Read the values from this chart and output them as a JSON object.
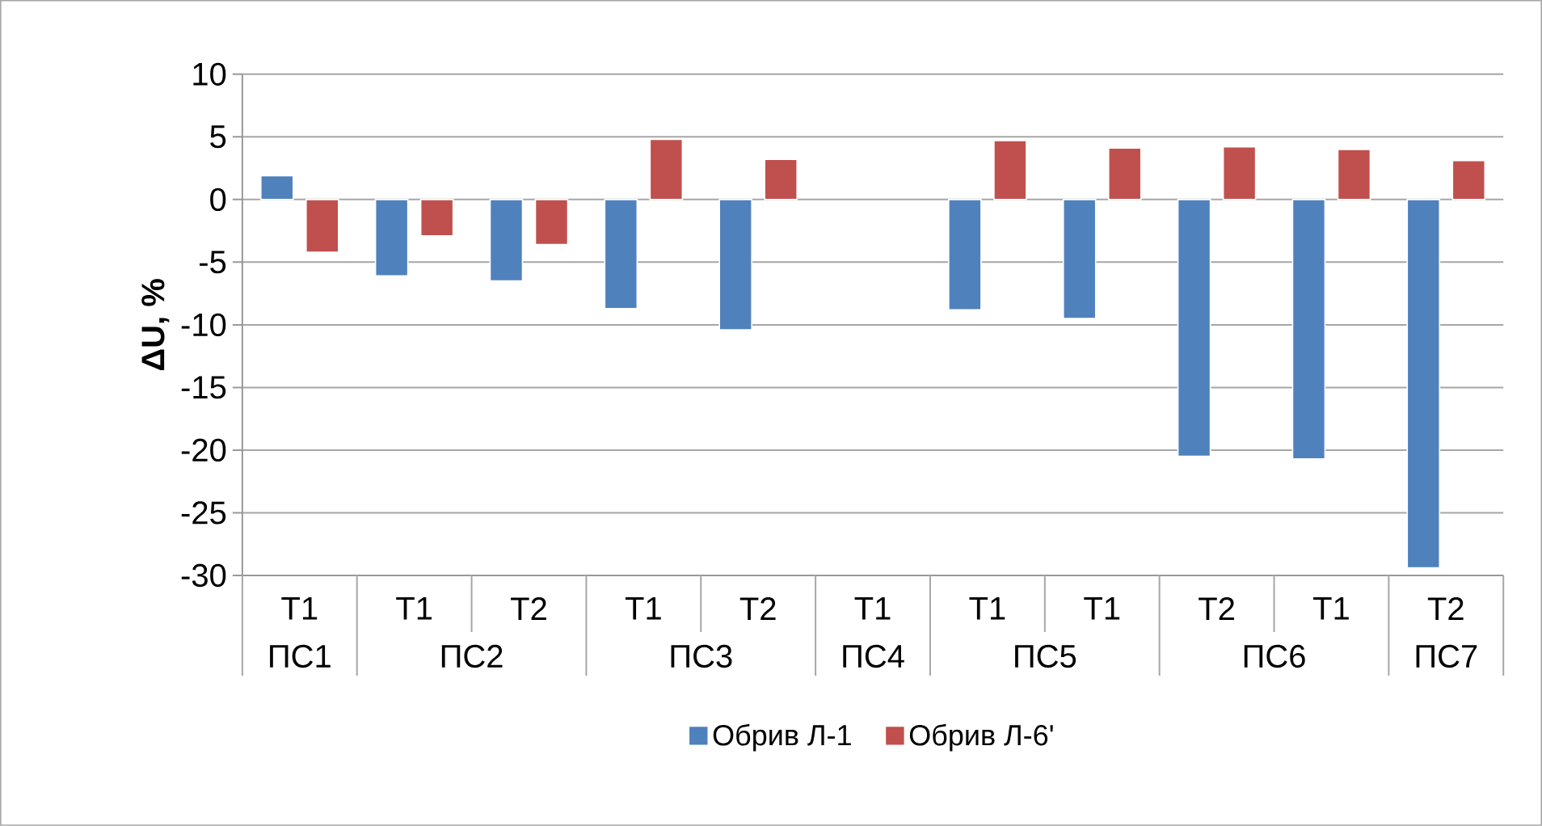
{
  "chart_data": {
    "type": "bar",
    "ylabel": "ΔU, %",
    "categories": [
      "T1",
      "T1",
      "T2",
      "T1",
      "T2",
      "T1",
      "T1",
      "T1",
      "T2",
      "T1",
      "T2"
    ],
    "annotations": [
      "ПС1",
      "ПС2",
      "ПС3",
      "ПС4",
      "ПС5",
      "ПС6",
      "ПС7"
    ],
    "series": [
      {
        "name": "Обрив Л-1",
        "color": "#4f81bd",
        "values": [
          1.9,
          -6.1,
          -6.5,
          -8.7,
          -10.4,
          null,
          -8.8,
          -9.5,
          -20.5,
          -20.7,
          -29.4
        ]
      },
      {
        "name": "Обрив Л-6'",
        "color": "#c0504d",
        "values": [
          -4.2,
          -2.9,
          -3.6,
          4.8,
          3.2,
          null,
          4.7,
          4.1,
          4.2,
          4.0,
          3.1
        ]
      }
    ],
    "ylim": [
      -30,
      10
    ],
    "yticks": [
      -30,
      -25,
      -20,
      -15,
      -10,
      -5,
      0,
      5,
      10
    ],
    "grid": "y",
    "legend": "bottom"
  }
}
